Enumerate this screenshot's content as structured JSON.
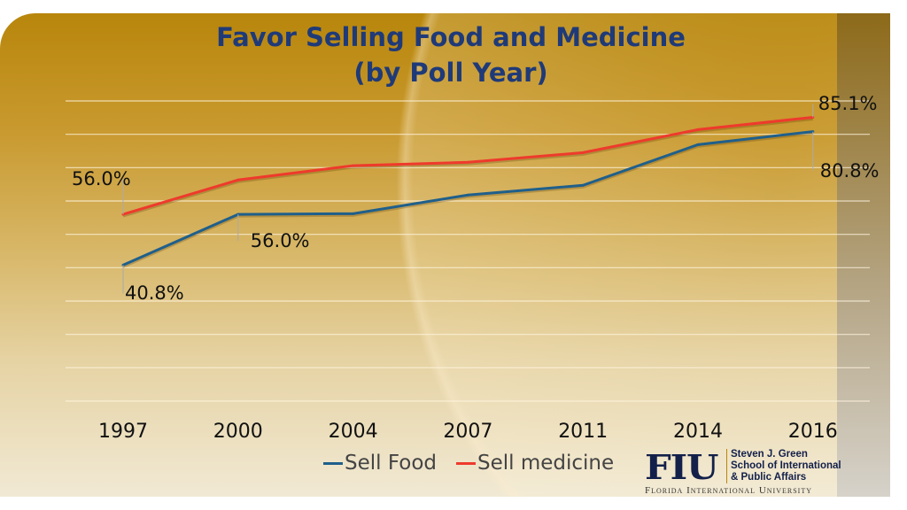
{
  "chart_data": {
    "type": "line",
    "title": "Favor Selling Food and Medicine",
    "subtitle": "(by Poll Year)",
    "categories": [
      "1997",
      "2000",
      "2004",
      "2007",
      "2011",
      "2014",
      "2016"
    ],
    "ylim": [
      0,
      90
    ],
    "grid": true,
    "legend_position": "bottom",
    "series": [
      {
        "name": "Sell Food",
        "color": "#1f5f8b",
        "values": [
          40.8,
          56.0,
          56.2,
          61.8,
          64.7,
          76.9,
          80.8
        ]
      },
      {
        "name": "Sell medicine",
        "color": "#ee3a2c",
        "values": [
          56.0,
          66.3,
          70.6,
          71.6,
          74.5,
          81.4,
          85.1
        ]
      }
    ],
    "data_labels": [
      {
        "series": 0,
        "index": 0,
        "text": "40.8%"
      },
      {
        "series": 0,
        "index": 1,
        "text": "56.0%"
      },
      {
        "series": 0,
        "index": 6,
        "text": "80.8%"
      },
      {
        "series": 1,
        "index": 0,
        "text": "56.0%"
      },
      {
        "series": 1,
        "index": 6,
        "text": "85.1%"
      }
    ]
  },
  "logo": {
    "mark": "FIU",
    "school": [
      "Steven J. Green",
      "School of International",
      "& Public Affairs"
    ],
    "university": "Florida International University"
  }
}
